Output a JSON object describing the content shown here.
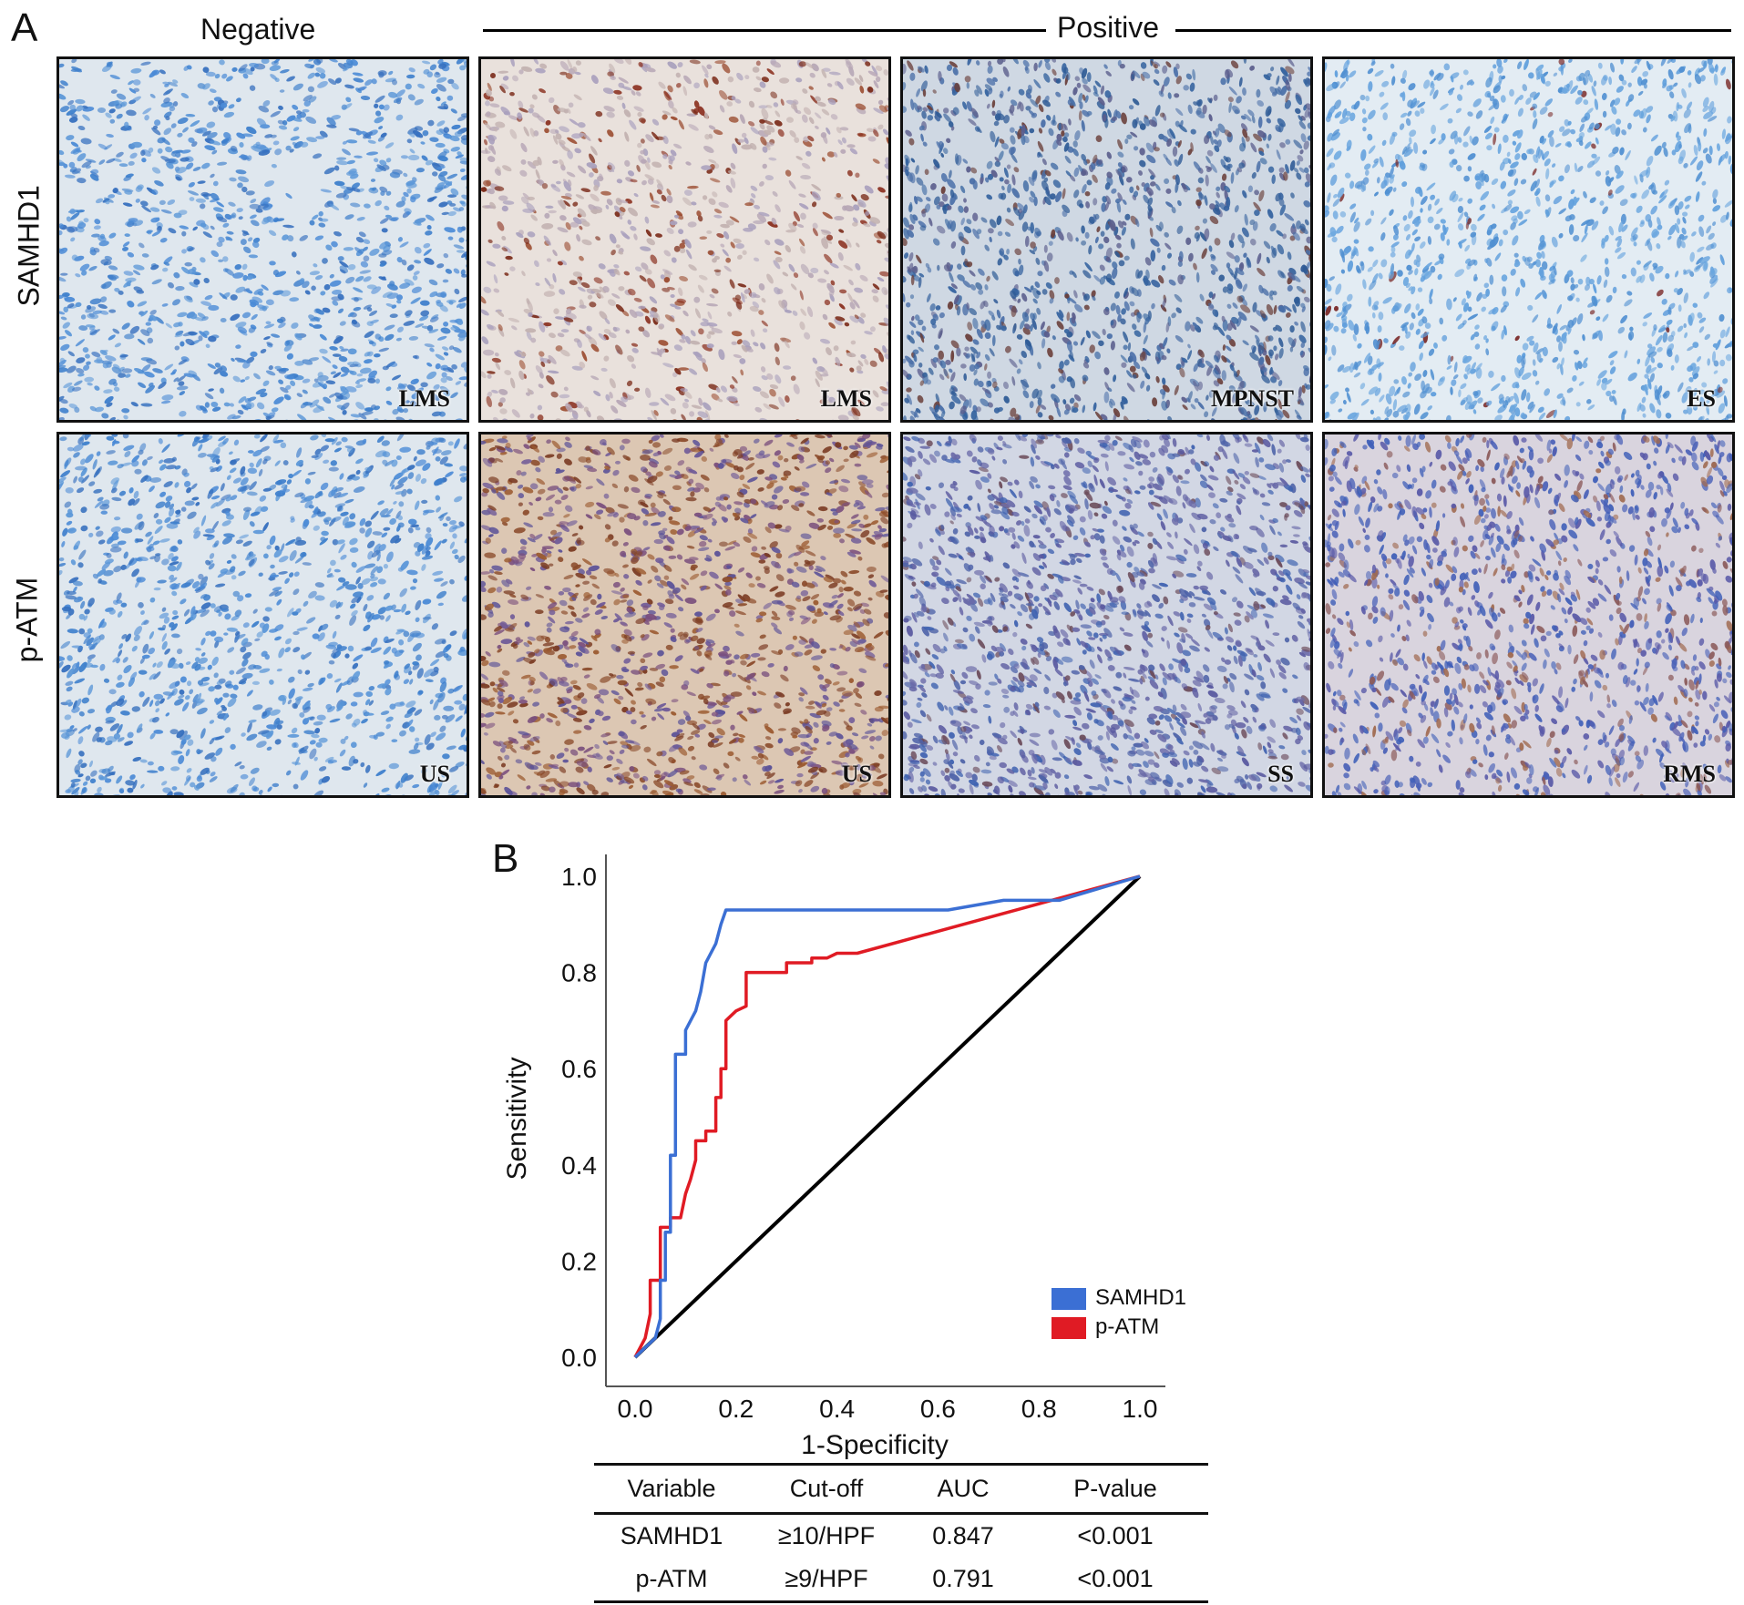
{
  "panel_a": {
    "letter": "A",
    "negative_label": "Negative",
    "positive_label": "Positive",
    "row_labels": [
      "SAMHD1",
      "p-ATM"
    ],
    "tiles": [
      {
        "label": "LMS",
        "stain": "negative"
      },
      {
        "label": "LMS",
        "stain": "brown-strong"
      },
      {
        "label": "MPNST",
        "stain": "mixed-dark"
      },
      {
        "label": "ES",
        "stain": "light-sparse"
      },
      {
        "label": "US",
        "stain": "negative"
      },
      {
        "label": "US",
        "stain": "brown-dense"
      },
      {
        "label": "SS",
        "stain": "purple-streaked"
      },
      {
        "label": "RMS",
        "stain": "purple-mixed"
      }
    ]
  },
  "panel_b": {
    "letter": "B",
    "legend_colors": {
      "SAMHD1": "#3b6fd4",
      "p-ATM": "#e01b24"
    },
    "table": {
      "headers": [
        "Variable",
        "Cut-off",
        "AUC",
        "P-value"
      ],
      "rows": [
        [
          "SAMHD1",
          "≥10/HPF",
          "0.847",
          "<0.001"
        ],
        [
          "p-ATM",
          "≥9/HPF",
          "0.791",
          "<0.001"
        ]
      ]
    }
  },
  "chart_data": {
    "type": "line",
    "title": "",
    "xlabel": "1-Specificity",
    "ylabel": "Sensitivity",
    "xlim": [
      0.0,
      1.0
    ],
    "ylim": [
      0.0,
      1.0
    ],
    "x_ticks": [
      "0.0",
      "0.2",
      "0.4",
      "0.6",
      "0.8",
      "1.0"
    ],
    "y_ticks": [
      "0.0",
      "0.2",
      "0.4",
      "0.6",
      "0.8",
      "1.0"
    ],
    "legend_position": "bottom-right",
    "series": [
      {
        "name": "SAMHD1",
        "color": "#3b6fd4",
        "points": [
          [
            0,
            0
          ],
          [
            0.02,
            0.02
          ],
          [
            0.04,
            0.04
          ],
          [
            0.05,
            0.08
          ],
          [
            0.05,
            0.16
          ],
          [
            0.06,
            0.16
          ],
          [
            0.06,
            0.26
          ],
          [
            0.07,
            0.26
          ],
          [
            0.07,
            0.42
          ],
          [
            0.08,
            0.42
          ],
          [
            0.08,
            0.63
          ],
          [
            0.1,
            0.63
          ],
          [
            0.1,
            0.68
          ],
          [
            0.12,
            0.72
          ],
          [
            0.13,
            0.76
          ],
          [
            0.14,
            0.82
          ],
          [
            0.16,
            0.86
          ],
          [
            0.17,
            0.9
          ],
          [
            0.18,
            0.93
          ],
          [
            0.62,
            0.93
          ],
          [
            0.73,
            0.95
          ],
          [
            0.84,
            0.95
          ],
          [
            1.0,
            1.0
          ]
        ]
      },
      {
        "name": "p-ATM",
        "color": "#e01b24",
        "points": [
          [
            0,
            0
          ],
          [
            0.02,
            0.04
          ],
          [
            0.03,
            0.09
          ],
          [
            0.03,
            0.16
          ],
          [
            0.05,
            0.16
          ],
          [
            0.05,
            0.27
          ],
          [
            0.07,
            0.27
          ],
          [
            0.07,
            0.29
          ],
          [
            0.09,
            0.29
          ],
          [
            0.1,
            0.34
          ],
          [
            0.11,
            0.37
          ],
          [
            0.12,
            0.41
          ],
          [
            0.12,
            0.45
          ],
          [
            0.14,
            0.45
          ],
          [
            0.14,
            0.47
          ],
          [
            0.16,
            0.47
          ],
          [
            0.16,
            0.54
          ],
          [
            0.17,
            0.54
          ],
          [
            0.17,
            0.6
          ],
          [
            0.18,
            0.6
          ],
          [
            0.18,
            0.7
          ],
          [
            0.2,
            0.72
          ],
          [
            0.22,
            0.73
          ],
          [
            0.22,
            0.8
          ],
          [
            0.3,
            0.8
          ],
          [
            0.3,
            0.82
          ],
          [
            0.35,
            0.82
          ],
          [
            0.35,
            0.83
          ],
          [
            0.38,
            0.83
          ],
          [
            0.4,
            0.84
          ],
          [
            0.44,
            0.84
          ],
          [
            1.0,
            1.0
          ]
        ]
      },
      {
        "name": "",
        "color": "#000000",
        "points": [
          [
            0,
            0
          ],
          [
            1.0,
            1.0
          ]
        ]
      }
    ]
  }
}
